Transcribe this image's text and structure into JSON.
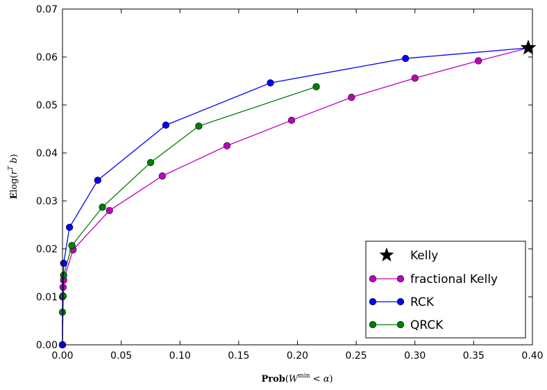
{
  "chart_data": {
    "type": "line",
    "xlabel": "Prob(W^min < α)",
    "ylabel": "E log(r^T b)",
    "xlim": [
      0.0,
      0.4
    ],
    "ylim": [
      0.0,
      0.07
    ],
    "xticks": [
      "0.00",
      "0.05",
      "0.10",
      "0.15",
      "0.20",
      "0.25",
      "0.30",
      "0.35",
      "0.40"
    ],
    "yticks": [
      "0.00",
      "0.01",
      "0.02",
      "0.03",
      "0.04",
      "0.05",
      "0.06",
      "0.07"
    ],
    "grid": false,
    "legend_position": "bottom-right",
    "series": [
      {
        "name": "Kelly",
        "marker": "star",
        "color": "#000000",
        "x": [
          0.3965
        ],
        "y": [
          0.0619
        ]
      },
      {
        "name": "fractional Kelly",
        "marker": "circle",
        "color": "#bf00bf",
        "x": [
          0.0,
          0.0,
          0.0005,
          0.001,
          0.009,
          0.04,
          0.085,
          0.14,
          0.195,
          0.246,
          0.3,
          0.354,
          0.3965
        ],
        "y": [
          0.0,
          0.01,
          0.012,
          0.0135,
          0.0198,
          0.028,
          0.0352,
          0.0415,
          0.0468,
          0.0516,
          0.0556,
          0.0592,
          0.0619
        ]
      },
      {
        "name": "RCK",
        "marker": "circle",
        "color": "#0000ff",
        "x": [
          0.0,
          0.001,
          0.006,
          0.03,
          0.088,
          0.177,
          0.292,
          0.3965
        ],
        "y": [
          0.0,
          0.017,
          0.0245,
          0.0343,
          0.0458,
          0.0546,
          0.0597,
          0.0619
        ]
      },
      {
        "name": "QRCK",
        "marker": "circle",
        "color": "#008000",
        "x": [
          0.0,
          0.0,
          0.0005,
          0.001,
          0.008,
          0.034,
          0.075,
          0.116,
          0.216
        ],
        "y": [
          0.0,
          0.0068,
          0.0102,
          0.0145,
          0.0207,
          0.0287,
          0.038,
          0.0456,
          0.0538
        ]
      }
    ]
  }
}
